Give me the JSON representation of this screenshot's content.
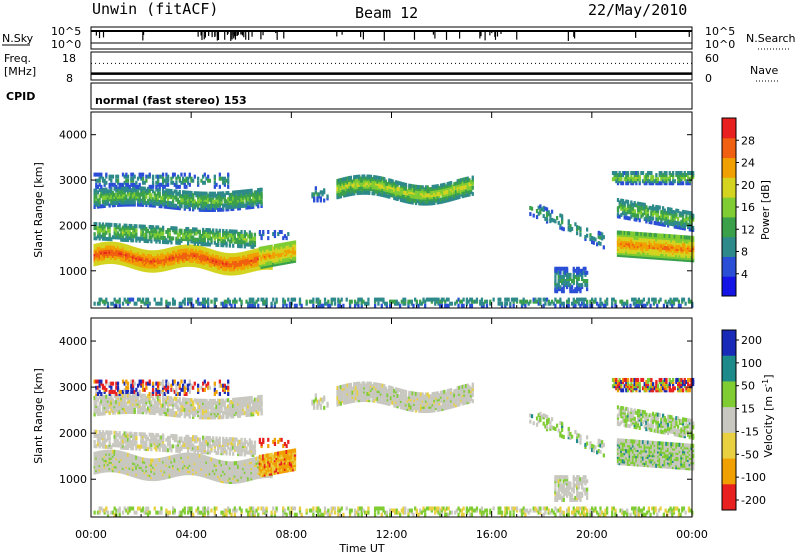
{
  "header": {
    "station": "Unwin (fitACF)",
    "beam": "Beam 12",
    "date": "22/May/2010"
  },
  "chart_data": [
    {
      "type": "line",
      "panel": "nsky-nsearch",
      "left_label": "N.Sky",
      "right_label": "N.Search",
      "left_ticks": [
        "10^5",
        "10^0"
      ],
      "right_ticks": [
        "10^5",
        "10^0"
      ]
    },
    {
      "type": "line",
      "panel": "freq-nave",
      "left_label_1": "Freq.",
      "left_label_2": "[MHz]",
      "right_label": "Nave",
      "left_ticks": [
        "18",
        "8"
      ],
      "right_ticks": [
        "60",
        "0"
      ],
      "freq_mhz": 10,
      "nave": 40
    },
    {
      "type": "table",
      "panel": "cpid",
      "label": "CPID",
      "text": "normal (fast stereo) 153"
    },
    {
      "type": "heatmap",
      "panel": "power",
      "ylabel": "Slant Range [km]",
      "ylim": [
        180,
        4500
      ],
      "yticks": [
        "1000",
        "2000",
        "3000",
        "4000"
      ],
      "colorbar_label": "Power [dB]",
      "colorbar_ticks": [
        "4",
        "8",
        "12",
        "16",
        "20",
        "24",
        "28"
      ],
      "colorbar_range": [
        0,
        32
      ],
      "colors": [
        "#1414e6",
        "#2a4fd6",
        "#2e8a8a",
        "#3aa04a",
        "#7fcc33",
        "#d4d420",
        "#f0a000",
        "#f06010",
        "#e82020"
      ]
    },
    {
      "type": "heatmap",
      "panel": "velocity",
      "ylabel": "Slant Range [km]",
      "ylim": [
        180,
        4500
      ],
      "yticks": [
        "1000",
        "2000",
        "3000",
        "4000"
      ],
      "colorbar_label": "Velocity [m s",
      "colorbar_label_sup": "-1",
      "colorbar_ticks": [
        "200",
        "100",
        "50",
        "15",
        "-15",
        "-50",
        "-100",
        "-200"
      ],
      "colors": {
        "pos_high": "#1a2ab8",
        "pos_mid": "#1e8a8a",
        "pos_low": "#7fcc33",
        "ground": "#c8c8c0",
        "neg_low": "#e8d040",
        "neg_mid": "#f0a000",
        "neg_high": "#e82020"
      }
    }
  ],
  "time_axis": {
    "label": "Time UT",
    "ticks": [
      "00:00",
      "04:00",
      "08:00",
      "12:00",
      "16:00",
      "20:00",
      "00:00"
    ],
    "range_hours": [
      0,
      24
    ]
  }
}
